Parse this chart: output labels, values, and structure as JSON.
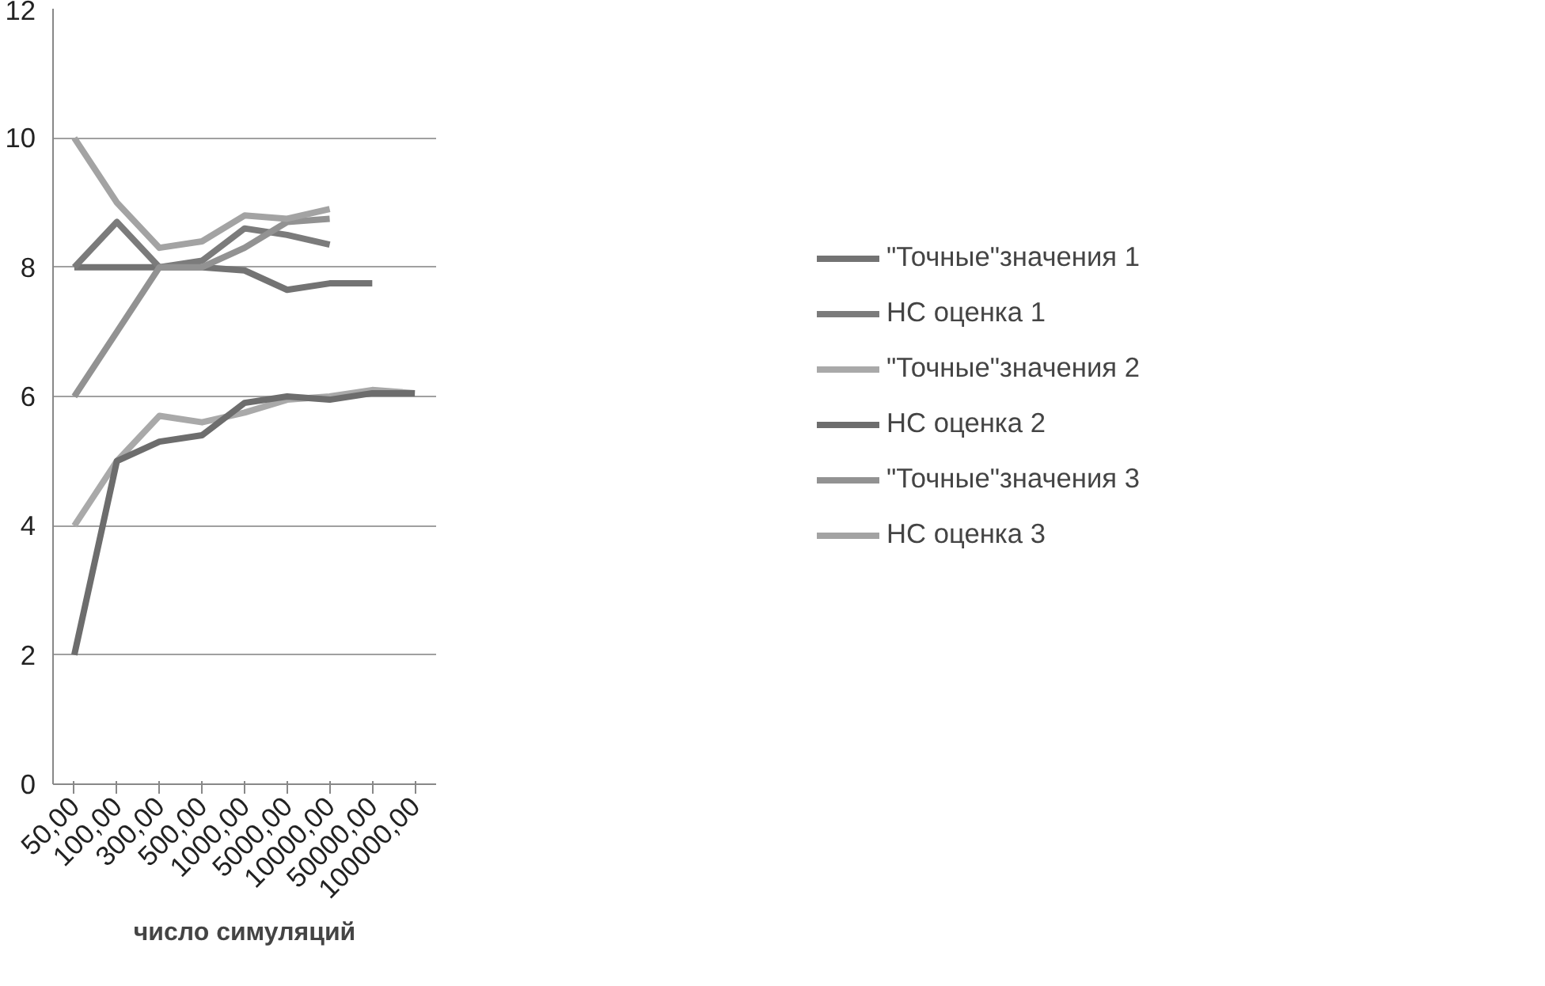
{
  "chart_data": {
    "type": "line",
    "xlabel": "число симуляций",
    "categories": [
      "50,00",
      "100,00",
      "300,00",
      "500,00",
      "1000,00",
      "5000,00",
      "10000,00",
      "50000,00",
      "100000,00"
    ],
    "ylim": [
      0,
      12
    ],
    "yticks": [
      0,
      2,
      4,
      6,
      8,
      10,
      12
    ],
    "grid": "y",
    "legend": "right",
    "marker": "none",
    "line_style": "solid",
    "series": [
      {
        "name": "\"Точные\"значения 1",
        "color": "#737373",
        "values": [
          8,
          8,
          8,
          8,
          7.95,
          7.65,
          7.75,
          7.75,
          null
        ]
      },
      {
        "name": "НС оценка 1",
        "color": "#7b7b7b",
        "values": [
          8,
          8.7,
          8,
          8.1,
          8.6,
          8.5,
          8.35,
          null,
          null
        ]
      },
      {
        "name": "\"Точные\"значения 2",
        "color": "#a9a9a9",
        "values": [
          4,
          5,
          5.7,
          5.6,
          5.75,
          5.95,
          6.0,
          6.1,
          6.05
        ]
      },
      {
        "name": "НС оценка 2",
        "color": "#6d6d6d",
        "values": [
          2,
          5,
          5.3,
          5.4,
          5.9,
          6.0,
          5.95,
          6.05,
          6.05
        ]
      },
      {
        "name": "\"Точные\"значения 3",
        "color": "#929292",
        "values": [
          6,
          7,
          8,
          8,
          8.3,
          8.7,
          8.75,
          null,
          null
        ]
      },
      {
        "name": "НС оценка 3",
        "color": "#a3a3a3",
        "values": [
          10,
          9,
          8.3,
          8.4,
          8.8,
          8.75,
          8.9,
          null,
          null
        ]
      }
    ]
  }
}
